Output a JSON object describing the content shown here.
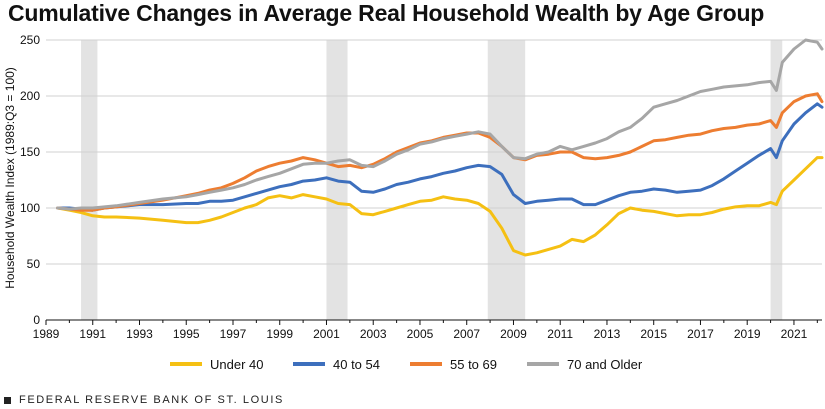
{
  "chart_data": {
    "type": "line",
    "title": "Cumulative Changes in Average Real Household Wealth by Age Group",
    "ylabel": "Household Wealth Index (1989:Q3 = 100)",
    "xlabel": "",
    "ylim": [
      0,
      250
    ],
    "xlim": [
      1989,
      2022.2
    ],
    "y_ticks": [
      "0",
      "50",
      "100",
      "150",
      "200",
      "250"
    ],
    "x_ticks": [
      "1989",
      "1991",
      "1993",
      "1995",
      "1997",
      "1999",
      "2001",
      "2003",
      "2005",
      "2007",
      "2009",
      "2011",
      "2013",
      "2015",
      "2017",
      "2019",
      "2021"
    ],
    "grid": "horizontal",
    "legend_position": "bottom",
    "recessions": [
      {
        "start": 1990.5,
        "end": 1991.2
      },
      {
        "start": 2001.0,
        "end": 2001.9
      },
      {
        "start": 2007.9,
        "end": 2009.5
      },
      {
        "start": 2020.0,
        "end": 2020.5
      }
    ],
    "series": [
      {
        "name": "Under 40",
        "color": "#F5C013",
        "x": [
          1989.5,
          1990,
          1990.5,
          1991,
          1991.5,
          1992,
          1993,
          1994,
          1995,
          1995.5,
          1996,
          1996.5,
          1997,
          1997.5,
          1998,
          1998.5,
          1999,
          1999.5,
          2000,
          2000.5,
          2001,
          2001.5,
          2002,
          2002.5,
          2003,
          2003.5,
          2004,
          2004.5,
          2005,
          2005.5,
          2006,
          2006.5,
          2007,
          2007.5,
          2008,
          2008.5,
          2009,
          2009.5,
          2010,
          2010.5,
          2011,
          2011.5,
          2012,
          2012.5,
          2013,
          2013.5,
          2014,
          2014.5,
          2015,
          2015.5,
          2016,
          2016.5,
          2017,
          2017.5,
          2018,
          2018.5,
          2019,
          2019.5,
          2020,
          2020.25,
          2020.5,
          2021,
          2021.5,
          2022,
          2022.2
        ],
        "values": [
          100,
          98,
          96,
          93,
          92,
          92,
          91,
          89,
          87,
          87,
          89,
          92,
          96,
          100,
          103,
          109,
          111,
          109,
          112,
          110,
          108,
          104,
          103,
          95,
          94,
          97,
          100,
          103,
          106,
          107,
          110,
          108,
          107,
          104,
          97,
          82,
          62,
          58,
          60,
          63,
          66,
          72,
          70,
          76,
          85,
          95,
          100,
          98,
          97,
          95,
          93,
          94,
          94,
          96,
          99,
          101,
          102,
          102,
          105,
          103,
          115,
          125,
          135,
          145,
          145
        ]
      },
      {
        "name": "40 to 54",
        "color": "#3D6FBD",
        "x": [
          1989.5,
          1990,
          1990.5,
          1991,
          1991.5,
          1992,
          1993,
          1994,
          1995,
          1995.5,
          1996,
          1996.5,
          1997,
          1997.5,
          1998,
          1998.5,
          1999,
          1999.5,
          2000,
          2000.5,
          2001,
          2001.5,
          2002,
          2002.5,
          2003,
          2003.5,
          2004,
          2004.5,
          2005,
          2005.5,
          2006,
          2006.5,
          2007,
          2007.5,
          2008,
          2008.5,
          2009,
          2009.5,
          2010,
          2010.5,
          2011,
          2011.5,
          2012,
          2012.5,
          2013,
          2013.5,
          2014,
          2014.5,
          2015,
          2015.5,
          2016,
          2016.5,
          2017,
          2017.5,
          2018,
          2018.5,
          2019,
          2019.5,
          2020,
          2020.25,
          2020.5,
          2021,
          2021.5,
          2022,
          2022.2
        ],
        "values": [
          100,
          100,
          99,
          98,
          100,
          101,
          103,
          103,
          104,
          104,
          106,
          106,
          107,
          110,
          113,
          116,
          119,
          121,
          124,
          125,
          127,
          124,
          123,
          115,
          114,
          117,
          121,
          123,
          126,
          128,
          131,
          133,
          136,
          138,
          137,
          130,
          112,
          104,
          106,
          107,
          108,
          108,
          103,
          103,
          107,
          111,
          114,
          115,
          117,
          116,
          114,
          115,
          116,
          120,
          126,
          133,
          140,
          147,
          153,
          145,
          160,
          175,
          185,
          193,
          190
        ]
      },
      {
        "name": "55 to 69",
        "color": "#ED7D31",
        "x": [
          1989.5,
          1990,
          1990.5,
          1991,
          1991.5,
          1992,
          1993,
          1994,
          1995,
          1995.5,
          1996,
          1996.5,
          1997,
          1997.5,
          1998,
          1998.5,
          1999,
          1999.5,
          2000,
          2000.5,
          2001,
          2001.5,
          2002,
          2002.5,
          2003,
          2003.5,
          2004,
          2004.5,
          2005,
          2005.5,
          2006,
          2006.5,
          2007,
          2007.5,
          2008,
          2008.5,
          2009,
          2009.5,
          2010,
          2010.5,
          2011,
          2011.5,
          2012,
          2012.5,
          2013,
          2013.5,
          2014,
          2014.5,
          2015,
          2015.5,
          2016,
          2016.5,
          2017,
          2017.5,
          2018,
          2018.5,
          2019,
          2019.5,
          2020,
          2020.25,
          2020.5,
          2021,
          2021.5,
          2022,
          2022.2
        ],
        "values": [
          100,
          99,
          98,
          98,
          100,
          101,
          104,
          107,
          111,
          113,
          116,
          118,
          122,
          127,
          133,
          137,
          140,
          142,
          145,
          143,
          140,
          137,
          138,
          136,
          139,
          144,
          150,
          154,
          158,
          160,
          163,
          165,
          167,
          167,
          163,
          155,
          145,
          143,
          147,
          148,
          150,
          150,
          145,
          144,
          145,
          147,
          150,
          155,
          160,
          161,
          163,
          165,
          166,
          169,
          171,
          172,
          174,
          175,
          178,
          172,
          185,
          195,
          200,
          202,
          195
        ]
      },
      {
        "name": "70 and Older",
        "color": "#A6A6A6",
        "x": [
          1989.5,
          1990,
          1990.5,
          1991,
          1991.5,
          1992,
          1993,
          1994,
          1995,
          1995.5,
          1996,
          1996.5,
          1997,
          1997.5,
          1998,
          1998.5,
          1999,
          1999.5,
          2000,
          2000.5,
          2001,
          2001.5,
          2002,
          2002.5,
          2003,
          2003.5,
          2004,
          2004.5,
          2005,
          2005.5,
          2006,
          2006.5,
          2007,
          2007.5,
          2008,
          2008.5,
          2009,
          2009.5,
          2010,
          2010.5,
          2011,
          2011.5,
          2012,
          2012.5,
          2013,
          2013.5,
          2014,
          2014.5,
          2015,
          2015.5,
          2016,
          2016.5,
          2017,
          2017.5,
          2018,
          2018.5,
          2019,
          2019.5,
          2020,
          2020.25,
          2020.5,
          2021,
          2021.5,
          2022,
          2022.2
        ],
        "values": [
          100,
          99,
          100,
          100,
          101,
          102,
          105,
          108,
          110,
          112,
          114,
          116,
          118,
          121,
          125,
          128,
          131,
          135,
          139,
          140,
          140,
          142,
          143,
          138,
          137,
          142,
          148,
          152,
          157,
          159,
          162,
          164,
          166,
          168,
          166,
          155,
          145,
          144,
          148,
          150,
          155,
          152,
          155,
          158,
          162,
          168,
          172,
          180,
          190,
          193,
          196,
          200,
          204,
          206,
          208,
          209,
          210,
          212,
          213,
          205,
          230,
          242,
          250,
          248,
          242
        ]
      }
    ]
  },
  "footer": {
    "source": "FEDERAL RESERVE BANK OF ST. LOUIS"
  }
}
